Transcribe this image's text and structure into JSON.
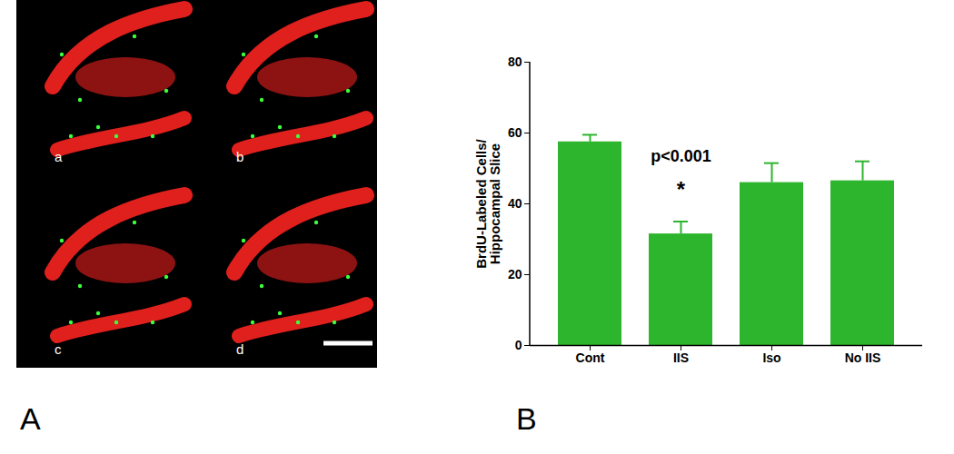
{
  "panels": {
    "labels": [
      "A",
      "B"
    ],
    "image_labels": [
      "a",
      "b",
      "c",
      "d"
    ]
  },
  "chart_data": {
    "type": "bar",
    "categories": [
      "Cont",
      "IIS",
      "Iso",
      "No IIS"
    ],
    "values": [
      57.5,
      31.5,
      46,
      46.5
    ],
    "errors": [
      2,
      3.5,
      5.5,
      5.5
    ],
    "color": "#2db52d",
    "y_label": "BrdU-Labeled Cells/\nHippocampal Slice",
    "ylim": [
      0,
      80
    ],
    "yticks": [
      0,
      20,
      40,
      60,
      80
    ],
    "grid": false,
    "annotations": [
      {
        "text": "p<0.001",
        "x": "IIS",
        "y": 53.5
      },
      {
        "text": "*",
        "x": "IIS",
        "y": 44
      }
    ]
  }
}
